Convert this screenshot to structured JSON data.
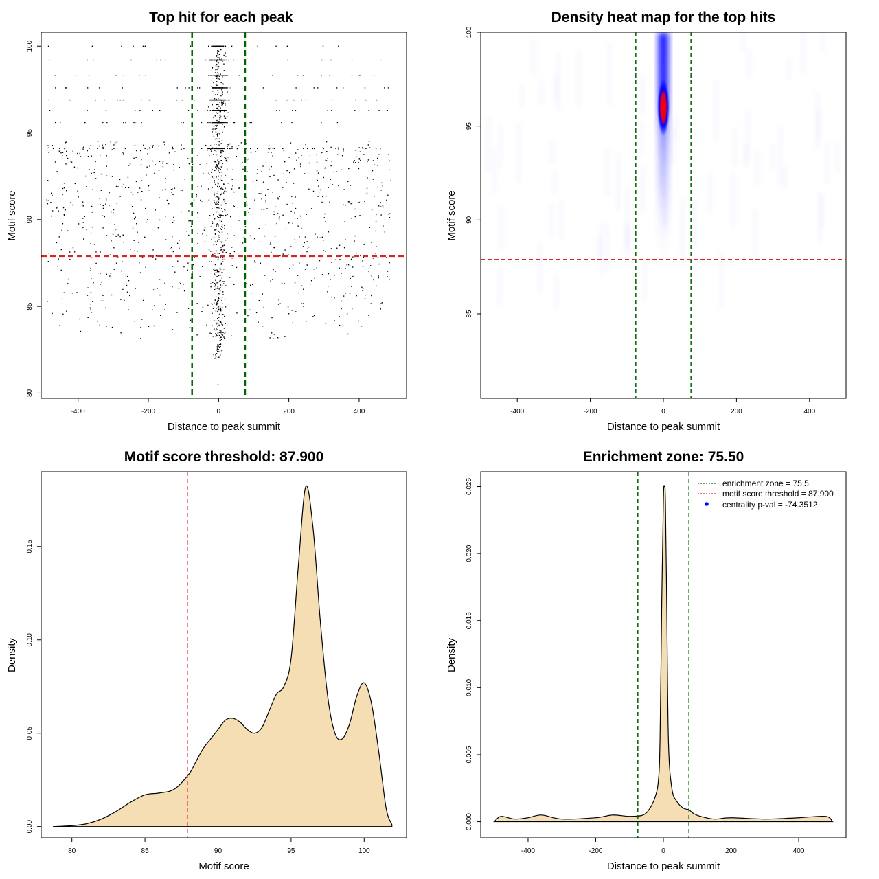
{
  "chart_data": [
    {
      "type": "scatter",
      "title": "Top hit for each peak",
      "xlabel": "Distance to peak summit",
      "ylabel": "Motif score",
      "xlim": [
        -505,
        535
      ],
      "ylim": [
        79.7,
        100.8
      ],
      "xticks": [
        -400,
        -200,
        0,
        200,
        400
      ],
      "yticks": [
        80,
        85,
        90,
        95,
        100
      ],
      "xtick_labels": [
        "-400",
        "-200",
        "0",
        "200",
        "400"
      ],
      "ytick_labels": [
        "80",
        "85",
        "90",
        "95",
        "100"
      ],
      "vlines": [
        -75.5,
        75.5
      ],
      "hline": 87.9,
      "levels": [
        100.0,
        99.2,
        98.3,
        97.6,
        96.9,
        96.3,
        95.6,
        94.1
      ],
      "colors": {
        "points": "#000000",
        "vline": "#006400",
        "hline": "#dd2222"
      }
    },
    {
      "type": "heatmap",
      "title": "Density heat map for the top hits",
      "xlabel": "Distance to peak summit",
      "ylabel": "Motif score",
      "xlim": [
        -500,
        500
      ],
      "ylim": [
        80.5,
        100
      ],
      "xticks": [
        -400,
        -200,
        0,
        200,
        400
      ],
      "yticks": [
        85,
        90,
        95,
        100
      ],
      "xtick_labels": [
        "-400",
        "-200",
        "0",
        "200",
        "400"
      ],
      "ytick_labels": [
        "85",
        "90",
        "95",
        "100"
      ],
      "vlines": [
        -75.5,
        75.5
      ],
      "hline": 87.9,
      "hotspot": {
        "x": 0,
        "y": 96
      },
      "colors": {
        "low": "#ffffff",
        "mid": "#0000ff",
        "high": "#ff0000",
        "vline": "#006400",
        "hline": "#dd2222"
      }
    },
    {
      "type": "area",
      "title": "Motif score threshold: 87.900",
      "xlabel": "Motif score",
      "ylabel": "Density",
      "xlim": [
        77.9,
        102.9
      ],
      "ylim": [
        -0.006,
        0.19
      ],
      "xticks": [
        80,
        85,
        90,
        95,
        100
      ],
      "yticks": [
        0.0,
        0.05,
        0.1,
        0.15
      ],
      "xtick_labels": [
        "80",
        "85",
        "90",
        "95",
        "100"
      ],
      "ytick_labels": [
        "0.00",
        "0.05",
        "0.10",
        "0.15"
      ],
      "vline": 87.9,
      "x": [
        78.7,
        80,
        81,
        82,
        83,
        84,
        85,
        86,
        87,
        88,
        88.5,
        89,
        89.5,
        90,
        90.5,
        91,
        91.5,
        92,
        92.5,
        93,
        93.5,
        94,
        94.5,
        95,
        95.5,
        96,
        96.5,
        97,
        97.5,
        98,
        98.5,
        99,
        99.5,
        100,
        100.5,
        101,
        101.5,
        101.9
      ],
      "y": [
        0.0,
        0.0005,
        0.0015,
        0.004,
        0.008,
        0.013,
        0.017,
        0.018,
        0.02,
        0.028,
        0.035,
        0.042,
        0.047,
        0.052,
        0.057,
        0.058,
        0.056,
        0.052,
        0.05,
        0.053,
        0.062,
        0.071,
        0.075,
        0.09,
        0.14,
        0.182,
        0.16,
        0.11,
        0.07,
        0.05,
        0.047,
        0.055,
        0.07,
        0.077,
        0.066,
        0.04,
        0.01,
        0.001
      ],
      "colors": {
        "fill": "#f5deb3",
        "line": "#000000",
        "vline": "#dd2222"
      }
    },
    {
      "type": "area",
      "title": "Enrichment zone: 75.50",
      "xlabel": "Distance to peak summit",
      "ylabel": "Density",
      "xlim": [
        -540,
        540
      ],
      "ylim": [
        -0.0012,
        0.0261
      ],
      "xticks": [
        -400,
        -200,
        0,
        200,
        400
      ],
      "yticks": [
        0.0,
        0.005,
        0.01,
        0.015,
        0.02,
        0.025
      ],
      "xtick_labels": [
        "-400",
        "-200",
        "0",
        "200",
        "400"
      ],
      "ytick_labels": [
        "0.000",
        "0.005",
        "0.010",
        "0.015",
        "0.020",
        "0.025"
      ],
      "vlines": [
        -75.5,
        75.5
      ],
      "x": [
        -500,
        -480,
        -440,
        -400,
        -360,
        -300,
        -200,
        -150,
        -100,
        -60,
        -40,
        -25,
        -15,
        -10,
        -5,
        0,
        3,
        6,
        10,
        15,
        25,
        40,
        60,
        75,
        90,
        110,
        150,
        200,
        300,
        400,
        480,
        500
      ],
      "y": [
        0.0,
        0.0004,
        0.0002,
        0.0003,
        0.0005,
        0.0002,
        0.0003,
        0.0005,
        0.0004,
        0.0005,
        0.001,
        0.0018,
        0.003,
        0.006,
        0.016,
        0.024,
        0.025,
        0.024,
        0.016,
        0.006,
        0.0025,
        0.0015,
        0.001,
        0.0009,
        0.0006,
        0.0004,
        0.0002,
        0.0003,
        0.0002,
        0.0003,
        0.0004,
        0.0
      ],
      "legend": [
        {
          "label": "enrichment zone = 75.5",
          "kind": "dotted-line",
          "color": "#006400"
        },
        {
          "label": "motif score threshold = 87.900",
          "kind": "dotted-line",
          "color": "#dd2222"
        },
        {
          "label": "centrality p-val = -74.3512",
          "kind": "point",
          "color": "#0000ff"
        }
      ],
      "legend_position": "top-right",
      "colors": {
        "fill": "#f5deb3",
        "line": "#000000",
        "vline": "#006400"
      }
    }
  ]
}
